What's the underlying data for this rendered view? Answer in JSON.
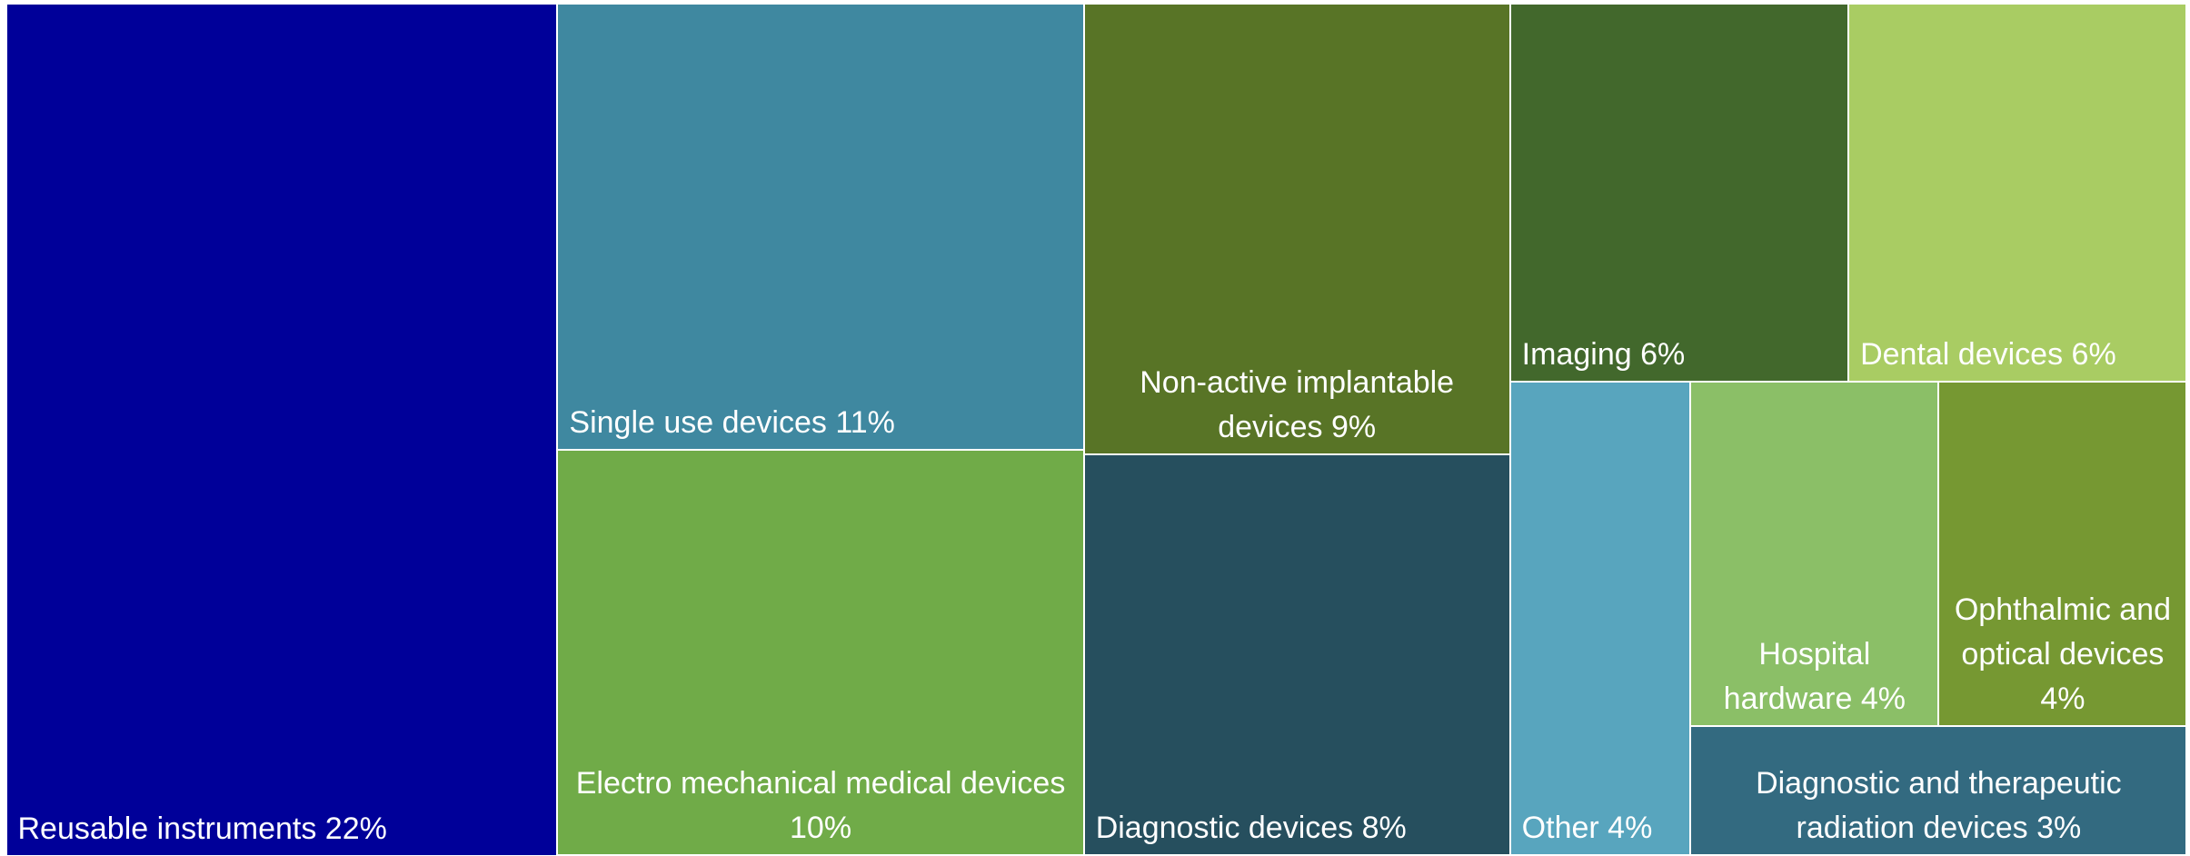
{
  "chart_data": {
    "type": "treemap",
    "categories": [
      "Reusable instruments",
      "Single use devices",
      "Electro mechanical medical devices",
      "Non-active implantable devices",
      "Diagnostic devices",
      "Imaging",
      "Dental devices",
      "Other",
      "Hospital hardware",
      "Ophthalmic and optical devices",
      "Diagnostic and therapeutic radiation devices"
    ],
    "values": [
      22,
      11,
      10,
      9,
      8,
      6,
      6,
      4,
      4,
      4,
      3
    ],
    "value_labels": [
      "22%",
      "11%",
      "10%",
      "9%",
      "8%",
      "6%",
      "6%",
      "4%",
      "4%",
      "4%",
      "3%"
    ],
    "colors": [
      "#000099",
      "#3f88a0",
      "#70ab48",
      "#587426",
      "#264f5e",
      "#42682c",
      "#a9cc63",
      "#58a5be",
      "#8bbf67",
      "#769832",
      "#336a80"
    ]
  }
}
